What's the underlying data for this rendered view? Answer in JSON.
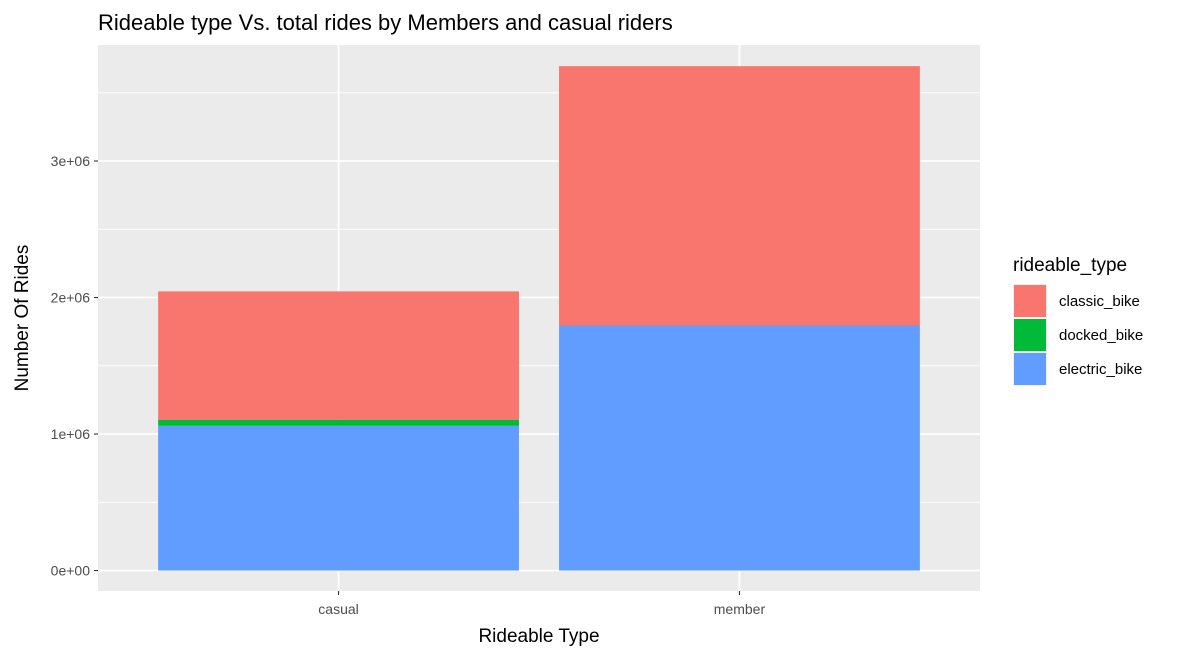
{
  "chart_data": {
    "type": "bar",
    "stacked": true,
    "title": "Rideable type Vs. total rides by Members and casual riders",
    "xlabel": "Rideable Type",
    "ylabel": "Number Of Rides",
    "categories": [
      "casual",
      "member"
    ],
    "series": [
      {
        "name": "classic_bike",
        "color": "#F8766D",
        "values": [
          940000,
          1900000
        ]
      },
      {
        "name": "docked_bike",
        "color": "#00BA38",
        "values": [
          45000,
          0
        ]
      },
      {
        "name": "electric_bike",
        "color": "#619CFF",
        "values": [
          1060000,
          1795000
        ]
      }
    ],
    "stack_order_bottom_to_top": [
      "electric_bike",
      "docked_bike",
      "classic_bike"
    ],
    "ylim": [
      -150000,
      3850000
    ],
    "y_ticks": [
      {
        "value": 0,
        "label": "0e+00"
      },
      {
        "value": 1000000,
        "label": "1e+06"
      },
      {
        "value": 2000000,
        "label": "2e+06"
      },
      {
        "value": 3000000,
        "label": "3e+06"
      }
    ],
    "y_minor_ticks": [
      500000,
      1500000,
      2500000,
      3500000
    ],
    "grid": true,
    "panel_background": "#EBEBEB",
    "grid_color": "#FFFFFF",
    "legend": {
      "title": "rideable_type",
      "placement": "right",
      "items": [
        "classic_bike",
        "docked_bike",
        "electric_bike"
      ]
    }
  }
}
